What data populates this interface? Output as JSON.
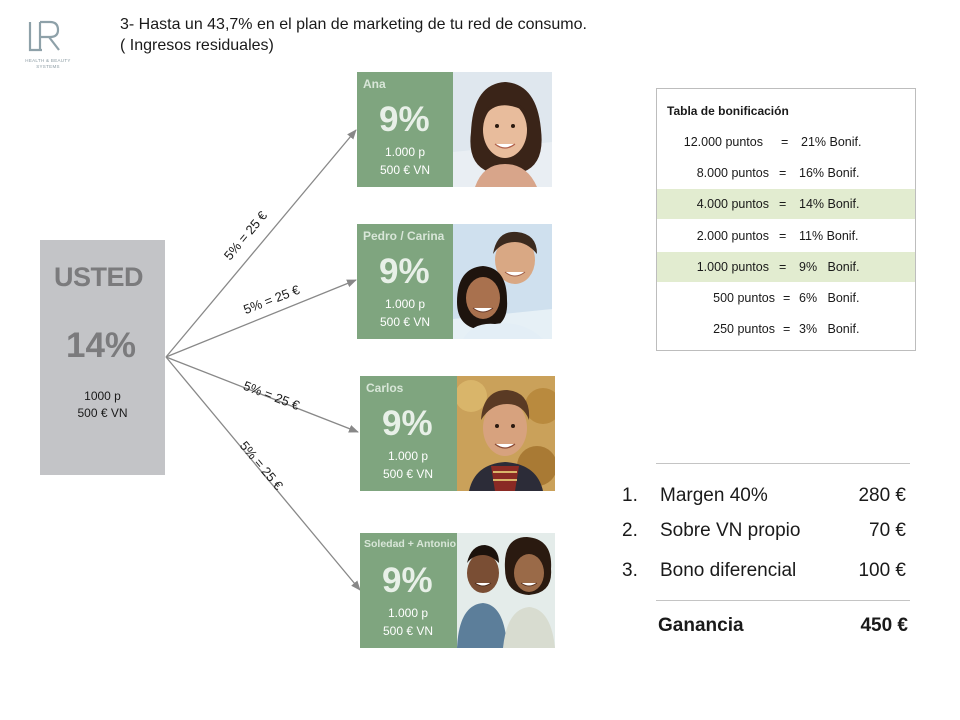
{
  "logo": {
    "mark": "LR",
    "line1": "HEALTH & BEAUTY",
    "line2": "SYSTEMS"
  },
  "headline": {
    "line1": "3- Hasta un 43,7% en el plan de marketing de tu red de consumo.",
    "line2": "( Ingresos residuales)"
  },
  "you": {
    "title": "USTED",
    "percent": "14%",
    "points": "1000 p",
    "vn": "500 € VN"
  },
  "connections": [
    {
      "label": "5% = 25 €"
    },
    {
      "label": "5% = 25 €"
    },
    {
      "label": "5% = 25 €"
    },
    {
      "label": "5% = 25 €"
    }
  ],
  "people": [
    {
      "name": "Ana",
      "percent": "9%",
      "points": "1.000 p",
      "vn": "500 € VN",
      "photo_icon": "woman-portrait-icon"
    },
    {
      "name": "Pedro / Carina",
      "percent": "9%",
      "points": "1.000 p",
      "vn": "500 € VN",
      "photo_icon": "couple-portrait-icon"
    },
    {
      "name": "Carlos",
      "percent": "9%",
      "points": "1.000 p",
      "vn": "500 € VN",
      "photo_icon": "man-portrait-icon"
    },
    {
      "name": "Soledad + Antonio",
      "percent": "9%",
      "points": "1.000 p",
      "vn": "500 € VN",
      "photo_icon": "couple-portrait-icon"
    }
  ],
  "bonus_table": {
    "title": "Tabla  de bonificación",
    "rows": [
      {
        "points": "12.000 puntos",
        "eq": "=",
        "bonus": "21% Bonif.",
        "highlight": false
      },
      {
        "points": "8.000 puntos",
        "eq": "=",
        "bonus": "16% Bonif.",
        "highlight": false
      },
      {
        "points": "4.000 puntos",
        "eq": "=",
        "bonus": "14% Bonif.",
        "highlight": true
      },
      {
        "points": "2.000 puntos",
        "eq": "=",
        "bonus": "11% Bonif.",
        "highlight": false
      },
      {
        "points": "1.000 puntos",
        "eq": "=",
        "bonus": "9%   Bonif.",
        "highlight": true
      },
      {
        "points": "500 puntos",
        "eq": "=",
        "bonus": "6%   Bonif.",
        "highlight": false
      },
      {
        "points": "250 puntos",
        "eq": "=",
        "bonus": "3%   Bonif.",
        "highlight": false
      }
    ]
  },
  "income": [
    {
      "num": "1.",
      "label": "Margen 40%",
      "amount": "280 €"
    },
    {
      "num": "2.",
      "label": "Sobre VN propio",
      "amount": "70 €"
    },
    {
      "num": "3.",
      "label": "Bono diferencial",
      "amount": "100 €"
    }
  ],
  "total": {
    "label": "Ganancia",
    "amount": "450 €"
  },
  "colors": {
    "you_box": "#c3c4c7",
    "person_box": "#7fa57f",
    "highlight_row": "#e2ecd0",
    "arrow": "#888888"
  }
}
